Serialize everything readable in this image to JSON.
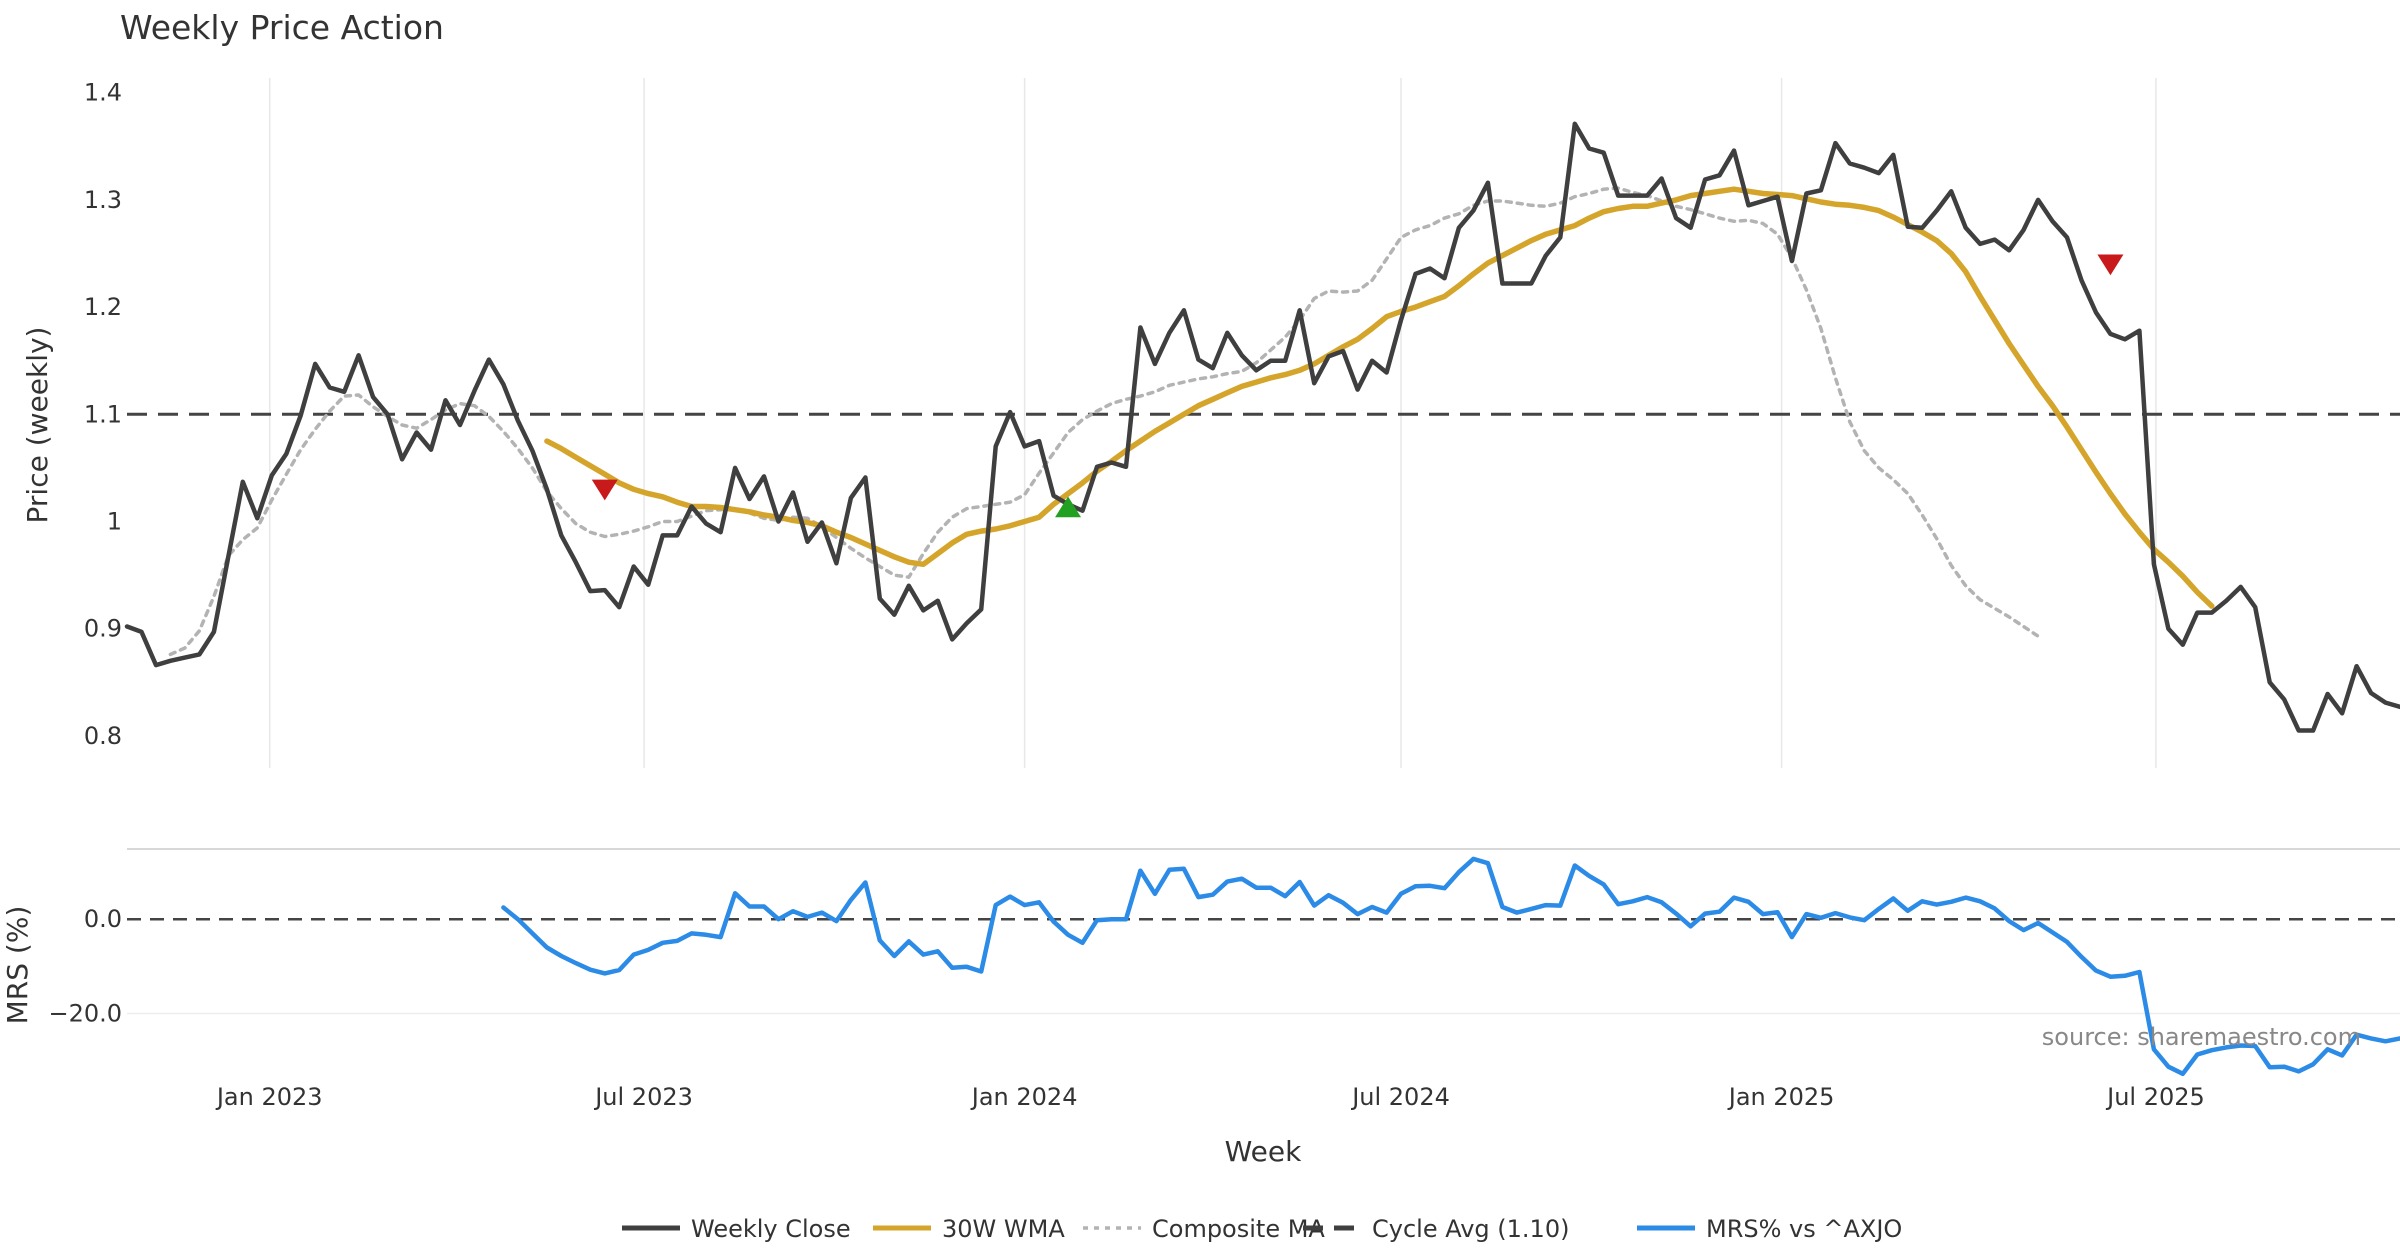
{
  "chart_data": [
    {
      "type": "line",
      "title": "Weekly Price Action",
      "ylabel": "Price (weekly)",
      "xlabel": "",
      "ylim": [
        0.77,
        1.41
      ],
      "xlim": [
        "2022-10-24",
        "2025-10-27"
      ],
      "yticks": [
        0.8,
        0.9,
        1,
        1.1,
        1.2,
        1.3,
        1.4
      ],
      "ytick_labels": [
        "0.8",
        "0.9",
        "1",
        "1.1",
        "1.2",
        "1.3",
        "1.4"
      ],
      "xgrid": [
        "2023-01-01",
        "2023-07-01",
        "2024-01-01",
        "2024-07-01",
        "2025-01-01",
        "2025-07-01"
      ],
      "grid": "vertical",
      "reference_line": {
        "y": 1.1,
        "label": "Cycle Avg (1.10)",
        "style": "dashed"
      },
      "series": [
        {
          "name": "Weekly Close",
          "color": "#3f3f3f",
          "start": "2022-10-24",
          "values": [
            0.902,
            0.897,
            0.866,
            0.87,
            0.873,
            0.876,
            0.897,
            0.967,
            1.037,
            1.003,
            1.043,
            1.063,
            1.099,
            1.147,
            1.125,
            1.121,
            1.155,
            1.116,
            1.1,
            1.058,
            1.083,
            1.067,
            1.113,
            1.09,
            1.122,
            1.151,
            1.128,
            1.094,
            1.066,
            1.03,
            0.987,
            0.962,
            0.935,
            0.936,
            0.92,
            0.958,
            0.941,
            0.987,
            0.987,
            1.014,
            0.998,
            0.99,
            1.05,
            1.021,
            1.042,
            1.0,
            1.027,
            0.981,
            0.999,
            0.961,
            1.022,
            1.041,
            0.928,
            0.913,
            0.94,
            0.917,
            0.926,
            0.89,
            0.905,
            0.918,
            1.07,
            1.102,
            1.07,
            1.075,
            1.024,
            1.016,
            1.01,
            1.051,
            1.055,
            1.051,
            1.181,
            1.147,
            1.176,
            1.197,
            1.151,
            1.143,
            1.176,
            1.155,
            1.141,
            1.15,
            1.15,
            1.197,
            1.129,
            1.154,
            1.159,
            1.123,
            1.15,
            1.139,
            1.188,
            1.231,
            1.236,
            1.227,
            1.274,
            1.29,
            1.316,
            1.222,
            1.222,
            1.222,
            1.248,
            1.265,
            1.371,
            1.348,
            1.344,
            1.304,
            1.304,
            1.304,
            1.32,
            1.283,
            1.274,
            1.319,
            1.323,
            1.346,
            1.295,
            1.299,
            1.303,
            1.243,
            1.306,
            1.309,
            1.353,
            1.334,
            1.33,
            1.325,
            1.342,
            1.275,
            1.274,
            1.29,
            1.308,
            1.274,
            1.259,
            1.263,
            1.253,
            1.272,
            1.3,
            1.28,
            1.265,
            1.225,
            1.195,
            1.175,
            1.17,
            1.178,
            0.96,
            0.9,
            0.885,
            0.915,
            0.915,
            0.926,
            0.939,
            0.92,
            0.85,
            0.834,
            0.805,
            0.805,
            0.839,
            0.821,
            0.865,
            0.84,
            0.831,
            0.827
          ]
        },
        {
          "name": "30W WMA",
          "color": "#d4a52a",
          "start": "2023-05-15",
          "values": [
            1.075,
            1.068,
            1.06,
            1.052,
            1.044,
            1.036,
            1.03,
            1.026,
            1.023,
            1.018,
            1.014,
            1.014,
            1.013,
            1.011,
            1.009,
            1.006,
            1.004,
            1.001,
            0.999,
            0.996,
            0.99,
            0.985,
            0.979,
            0.973,
            0.967,
            0.962,
            0.96,
            0.97,
            0.98,
            0.988,
            0.991,
            0.993,
            0.996,
            1.0,
            1.004,
            1.016,
            1.026,
            1.036,
            1.047,
            1.056,
            1.066,
            1.075,
            1.084,
            1.092,
            1.1,
            1.108,
            1.114,
            1.12,
            1.126,
            1.13,
            1.134,
            1.137,
            1.141,
            1.147,
            1.155,
            1.163,
            1.17,
            1.18,
            1.191,
            1.196,
            1.2,
            1.205,
            1.21,
            1.22,
            1.231,
            1.241,
            1.248,
            1.255,
            1.262,
            1.268,
            1.272,
            1.276,
            1.283,
            1.289,
            1.292,
            1.294,
            1.294,
            1.297,
            1.3,
            1.304,
            1.306,
            1.308,
            1.31,
            1.308,
            1.306,
            1.305,
            1.304,
            1.301,
            1.298,
            1.296,
            1.295,
            1.293,
            1.29,
            1.284,
            1.277,
            1.27,
            1.262,
            1.25,
            1.233,
            1.21,
            1.188,
            1.166,
            1.146,
            1.126,
            1.108,
            1.088,
            1.067,
            1.046,
            1.026,
            1.007,
            0.99,
            0.974,
            0.962,
            0.949,
            0.934,
            0.921
          ]
        },
        {
          "name": "Composite MA",
          "color": "#b3b3b3",
          "start": "2022-11-14",
          "values": [
            0.876,
            0.882,
            0.898,
            0.93,
            0.968,
            0.983,
            0.994,
            1.02,
            1.044,
            1.067,
            1.086,
            1.103,
            1.117,
            1.118,
            1.107,
            1.098,
            1.09,
            1.087,
            1.095,
            1.104,
            1.11,
            1.108,
            1.098,
            1.084,
            1.068,
            1.05,
            1.028,
            1.012,
            0.998,
            0.99,
            0.986,
            0.988,
            0.991,
            0.995,
            1.0,
            1.0,
            1.005,
            1.01,
            1.011,
            1.012,
            1.008,
            1.003,
            1.001,
            1.004,
            1.003,
            0.995,
            0.985,
            0.975,
            0.966,
            0.958,
            0.95,
            0.948,
            0.97,
            0.99,
            1.004,
            1.012,
            1.014,
            1.016,
            1.018,
            1.025,
            1.045,
            1.064,
            1.083,
            1.095,
            1.103,
            1.11,
            1.114,
            1.117,
            1.121,
            1.127,
            1.13,
            1.133,
            1.135,
            1.138,
            1.14,
            1.148,
            1.16,
            1.172,
            1.188,
            1.208,
            1.215,
            1.214,
            1.215,
            1.225,
            1.245,
            1.265,
            1.272,
            1.276,
            1.283,
            1.287,
            1.295,
            1.299,
            1.299,
            1.297,
            1.295,
            1.294,
            1.297,
            1.303,
            1.306,
            1.31,
            1.311,
            1.307,
            1.304,
            1.299,
            1.294,
            1.291,
            1.287,
            1.283,
            1.28,
            1.281,
            1.278,
            1.268,
            1.246,
            1.216,
            1.18,
            1.134,
            1.093,
            1.066,
            1.05,
            1.039,
            1.026,
            1.006,
            0.984,
            0.959,
            0.94,
            0.927,
            0.919,
            0.911,
            0.902,
            0.893
          ]
        }
      ],
      "markers": [
        {
          "type": "sell",
          "shape": "triangle-down",
          "color": "#c8191b",
          "x": "2023-06-12",
          "y": 1.03
        },
        {
          "type": "buy",
          "shape": "triangle-up",
          "color": "#22a022",
          "x": "2024-01-22",
          "y": 1.013
        },
        {
          "type": "sell",
          "shape": "triangle-down",
          "color": "#c8191b",
          "x": "2025-06-09",
          "y": 1.24
        }
      ]
    },
    {
      "type": "line",
      "title": "",
      "xlabel": "Week",
      "ylabel": "MRS (%)",
      "ylim": [
        -32,
        13
      ],
      "yticks": [
        0,
        -20
      ],
      "ytick_labels": [
        "0.0",
        "−20.0"
      ],
      "xticks": [
        "2023-01-01",
        "2023-07-01",
        "2024-01-01",
        "2024-07-01",
        "2025-01-01",
        "2025-07-01"
      ],
      "xtick_labels": [
        "Jan 2023",
        "Jul 2023",
        "Jan 2024",
        "Jul 2024",
        "Jan 2025",
        "Jul 2025"
      ],
      "reference_line": {
        "y": 0,
        "style": "dashed"
      },
      "series": [
        {
          "name": "MRS% vs ^AXJO",
          "color": "#2b8be6",
          "start": "2023-04-24",
          "values": [
            2.5,
            0.0,
            -3.0,
            -6.0,
            -7.8,
            -9.3,
            -10.7,
            -11.5,
            -10.8,
            -7.5,
            -6.5,
            -5.0,
            -4.6,
            -3.0,
            -3.3,
            -3.8,
            5.5,
            2.7,
            2.7,
            0.0,
            1.7,
            0.5,
            1.4,
            -0.4,
            4.1,
            7.8,
            -4.5,
            -7.8,
            -4.7,
            -7.5,
            -6.8,
            -10.3,
            -10.1,
            -11.1,
            3.0,
            4.8,
            3.0,
            3.6,
            -0.5,
            -3.3,
            -5.0,
            -0.2,
            0.0,
            0.0,
            10.3,
            5.4,
            10.5,
            10.7,
            4.7,
            5.2,
            8.0,
            8.6,
            6.7,
            6.7,
            4.9,
            7.9,
            2.9,
            5.1,
            3.5,
            1.1,
            2.6,
            1.4,
            5.4,
            7.0,
            7.1,
            6.6,
            10.0,
            12.8,
            11.9,
            2.6,
            1.4,
            2.2,
            3.0,
            2.9,
            11.4,
            9.2,
            7.4,
            3.2,
            3.8,
            4.7,
            3.6,
            1.2,
            -1.5,
            1.2,
            1.6,
            4.6,
            3.7,
            1.1,
            1.5,
            -3.8,
            1.1,
            0.3,
            1.3,
            0.4,
            -0.2,
            2.2,
            4.4,
            1.8,
            3.8,
            3.1,
            3.7,
            4.6,
            3.8,
            2.3,
            -0.4,
            -2.3,
            -0.8,
            -2.8,
            -4.8,
            -8.0,
            -10.9,
            -12.2,
            -12.0,
            -11.2,
            -27.6,
            -31.3,
            -32.8,
            -28.7,
            -27.8,
            -27.2,
            -26.8,
            -26.9,
            -31.4,
            -31.3,
            -32.3,
            -30.8,
            -27.6,
            -28.9,
            -24.5,
            -25.3,
            -25.9,
            -25.3
          ]
        }
      ]
    }
  ],
  "legend": {
    "placement": "bottom-center",
    "items": [
      {
        "label": "Weekly Close",
        "color": "#3f3f3f",
        "style": "solid"
      },
      {
        "label": "30W WMA",
        "color": "#d4a52a",
        "style": "solid"
      },
      {
        "label": "Composite MA",
        "color": "#b3b3b3",
        "style": "dotted"
      },
      {
        "label": "Cycle Avg (1.10)",
        "color": "#3f3f3f",
        "style": "dashed"
      },
      {
        "label": "MRS% vs ^AXJO",
        "color": "#2b8be6",
        "style": "solid"
      }
    ]
  },
  "source_note": "source: sharemaestro.com"
}
